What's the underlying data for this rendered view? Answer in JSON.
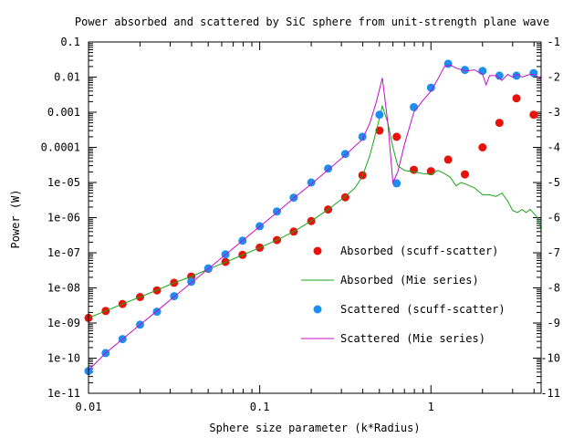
{
  "chart_data": {
    "type": "scatter",
    "title": "Power absorbed and scattered by SiC sphere from unit-strength plane wave",
    "xlabel": "Sphere size parameter (k*Radius)",
    "ylabel": "Power (W)",
    "x_scale": "log",
    "y_scale": "log",
    "xlim": [
      0.01,
      4.4
    ],
    "ylim": [
      1e-11,
      0.1
    ],
    "x_ticks": [
      0.01,
      0.1,
      1
    ],
    "x_tick_labels": [
      "0.01",
      "0.1",
      "1"
    ],
    "y_ticks": [
      1e-11,
      1e-10,
      1e-09,
      1e-08,
      1e-07,
      1e-06,
      1e-05,
      0.0001,
      0.001,
      0.01,
      0.1
    ],
    "y_tick_labels": [
      "1e-11",
      "1e-10",
      "1e-09",
      "1e-08",
      "1e-07",
      "1e-06",
      "1e-05",
      "0.0001",
      "0.001",
      "0.01",
      "0.1"
    ],
    "y2_tick_labels": [
      "-11",
      "-10",
      "-9",
      "-8",
      "-7",
      "-6",
      "-5",
      "-4",
      "-3",
      "-2",
      "-1"
    ],
    "grid": false,
    "legend_position": "right-center",
    "series": [
      {
        "name": "Absorbed (scuff-scatter)",
        "kind": "points",
        "color": "#e8120c",
        "x": [
          0.01,
          0.0126,
          0.0158,
          0.02,
          0.0251,
          0.0316,
          0.0398,
          0.0501,
          0.0631,
          0.0794,
          0.1,
          0.126,
          0.158,
          0.2,
          0.251,
          0.316,
          0.398,
          0.501,
          0.631,
          0.794,
          1.0,
          1.26,
          1.58,
          2.0,
          2.51,
          3.16,
          3.98
        ],
        "y": [
          1.4e-09,
          2.2e-09,
          3.5e-09,
          5.5e-09,
          8.5e-09,
          1.4e-08,
          2.1e-08,
          3.5e-08,
          5.5e-08,
          8.7e-08,
          1.4e-07,
          2.3e-07,
          4e-07,
          8e-07,
          1.7e-06,
          3.8e-06,
          1.6e-05,
          0.0003,
          0.0002,
          2.3e-05,
          2.1e-05,
          4.5e-05,
          1.7e-05,
          0.0001,
          0.0005,
          0.0025,
          0.00085
        ]
      },
      {
        "name": "Absorbed (Mie series)",
        "kind": "line",
        "color": "#1aa31a",
        "x": [
          0.01,
          0.0126,
          0.0158,
          0.02,
          0.0251,
          0.0316,
          0.0398,
          0.0501,
          0.0631,
          0.0794,
          0.1,
          0.126,
          0.158,
          0.2,
          0.251,
          0.316,
          0.36,
          0.398,
          0.44,
          0.48,
          0.52,
          0.56,
          0.6,
          0.64,
          0.7,
          0.794,
          0.9,
          1.0,
          1.1,
          1.2,
          1.3,
          1.4,
          1.5,
          1.6,
          1.8,
          2.0,
          2.2,
          2.4,
          2.6,
          2.8,
          3.0,
          3.2,
          3.4,
          3.6,
          3.8,
          4.0,
          4.2,
          4.4
        ],
        "y": [
          1.4e-09,
          2.2e-09,
          3.5e-09,
          5.5e-09,
          8.6e-09,
          1.4e-08,
          2.1e-08,
          3.4e-08,
          5.4e-08,
          8.6e-08,
          1.4e-07,
          2.3e-07,
          4e-07,
          8e-07,
          1.7e-06,
          4e-06,
          7e-06,
          1.5e-05,
          6e-05,
          0.0003,
          0.0015,
          0.0005,
          0.0001,
          3e-05,
          2.2e-05,
          2e-05,
          1.8e-05,
          1.7e-05,
          2.2e-05,
          1.8e-05,
          1.4e-05,
          8e-06,
          1e-05,
          9e-06,
          7e-06,
          4.5e-06,
          4.5e-06,
          4e-06,
          5e-06,
          3e-06,
          1.6e-06,
          1.4e-06,
          1.7e-06,
          1.4e-06,
          1.7e-06,
          1.3e-06,
          1e-06,
          4.5e-07
        ]
      },
      {
        "name": "Scattered (scuff-scatter)",
        "kind": "points",
        "color": "#1c8ef0",
        "x": [
          0.01,
          0.0126,
          0.0158,
          0.02,
          0.0251,
          0.0316,
          0.0398,
          0.0501,
          0.0631,
          0.0794,
          0.1,
          0.126,
          0.158,
          0.2,
          0.251,
          0.316,
          0.398,
          0.501,
          0.631,
          0.794,
          1.0,
          1.26,
          1.58,
          2.0,
          2.51,
          3.16,
          3.98
        ],
        "y": [
          4.3e-11,
          1.4e-10,
          3.5e-10,
          9e-10,
          2.1e-09,
          5.8e-09,
          1.5e-08,
          3.6e-08,
          9e-08,
          2.2e-07,
          5.7e-07,
          1.5e-06,
          3.7e-06,
          1e-05,
          2.5e-05,
          6.5e-05,
          0.0002,
          0.00085,
          9.5e-06,
          0.0014,
          0.005,
          0.024,
          0.016,
          0.015,
          0.011,
          0.011,
          0.013
        ]
      },
      {
        "name": "Scattered (Mie series)",
        "kind": "line",
        "color": "#c010c8",
        "x": [
          0.01,
          0.0126,
          0.0158,
          0.02,
          0.0251,
          0.0316,
          0.0398,
          0.0501,
          0.0631,
          0.0794,
          0.1,
          0.126,
          0.158,
          0.2,
          0.251,
          0.316,
          0.398,
          0.44,
          0.48,
          0.52,
          0.56,
          0.6,
          0.64,
          0.7,
          0.794,
          0.9,
          1.0,
          1.1,
          1.2,
          1.3,
          1.4,
          1.6,
          1.8,
          2.0,
          2.1,
          2.2,
          2.4,
          2.6,
          2.8,
          3.0,
          3.2,
          3.4,
          3.6,
          3.8,
          4.0,
          4.4
        ],
        "y": [
          4.5e-11,
          1.4e-10,
          3.5e-10,
          9e-10,
          2.2e-09,
          5.6e-09,
          1.4e-08,
          3.5e-08,
          8.8e-08,
          2.2e-07,
          5.6e-07,
          1.4e-06,
          3.6e-06,
          9e-06,
          2.3e-05,
          6e-05,
          0.00017,
          0.0005,
          0.002,
          0.0095,
          0.0005,
          1e-05,
          2e-05,
          0.00012,
          0.001,
          0.0022,
          0.004,
          0.009,
          0.02,
          0.022,
          0.018,
          0.015,
          0.016,
          0.012,
          0.006,
          0.011,
          0.011,
          0.008,
          0.012,
          0.01,
          0.012,
          0.01,
          0.011,
          0.012,
          0.012,
          0.009
        ]
      }
    ]
  }
}
